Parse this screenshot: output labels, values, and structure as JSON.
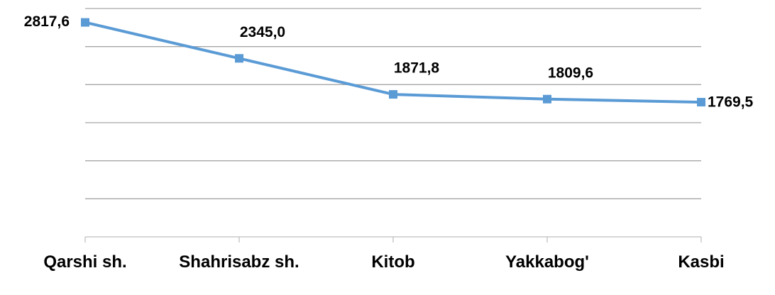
{
  "chart_data": {
    "type": "line",
    "categories": [
      "Qarshi sh.",
      "Shahrisabz sh.",
      "Kitob",
      "Yakkabog'",
      "Kasbi"
    ],
    "series": [
      {
        "color": "#5b9bd5",
        "values": [
          2817.6,
          2345.0,
          1871.8,
          1809.6,
          1769.5
        ],
        "value_labels": [
          "2817,6",
          "2345,0",
          "1871,8",
          "1809,6",
          "1769,5"
        ]
      }
    ],
    "ylim": [
      0,
      3000
    ],
    "yticks": [
      0,
      500,
      1000,
      1500,
      2000,
      2500,
      3000
    ],
    "grid": true
  }
}
